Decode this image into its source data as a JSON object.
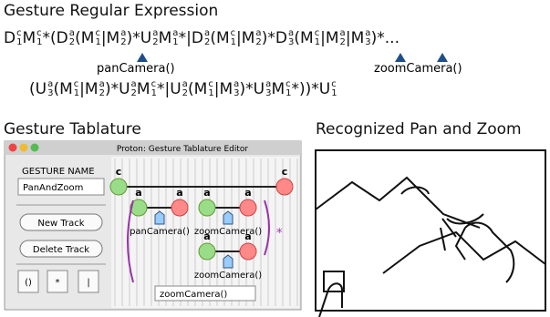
{
  "headings": {
    "expression": "Gesture Regular Expression",
    "tablature": "Gesture Tablature",
    "recognized": "Recognized Pan and Zoom"
  },
  "expression": {
    "lines": [
      [
        {
          "b": "D",
          "sub": "1",
          "sup": "c"
        },
        {
          "b": "M",
          "sub": "1",
          "sup": "c"
        },
        "*(",
        {
          "b": "D",
          "sub": "2",
          "sup": "a"
        },
        "(",
        {
          "b": "M",
          "sub": "1",
          "sup": "c"
        },
        "|",
        {
          "b": "M",
          "sub": "2",
          "sup": "a"
        },
        ")*",
        {
          "b": "U",
          "sub": "2",
          "sup": "a"
        },
        {
          "b": "M",
          "sub": "1",
          "sup": "a"
        },
        "*|",
        {
          "b": "D",
          "sub": "2",
          "sup": "a"
        },
        "(",
        {
          "b": "M",
          "sub": "1",
          "sup": "c"
        },
        "|",
        {
          "b": "M",
          "sub": "2",
          "sup": "a"
        },
        ")*",
        {
          "b": "D",
          "sub": "3",
          "sup": "a"
        },
        "(",
        {
          "b": "M",
          "sub": "1",
          "sup": "c"
        },
        "|",
        {
          "b": "M",
          "sub": "2",
          "sup": "a"
        },
        "|",
        {
          "b": "M",
          "sub": "3",
          "sup": "a"
        },
        ")*",
        "..."
      ],
      [
        "(",
        {
          "b": "U",
          "sub": "3",
          "sup": "a"
        },
        "(",
        {
          "b": "M",
          "sub": "1",
          "sup": "c"
        },
        "|",
        {
          "b": "M",
          "sub": "2",
          "sup": "a"
        },
        ")*",
        {
          "b": "U",
          "sub": "2",
          "sup": "a"
        },
        {
          "b": "M",
          "sub": "1",
          "sup": "c"
        },
        "*|",
        {
          "b": "U",
          "sub": "2",
          "sup": "a"
        },
        "(",
        {
          "b": "M",
          "sub": "1",
          "sup": "c"
        },
        "|",
        {
          "b": "M",
          "sub": "3",
          "sup": "a"
        },
        ")*",
        {
          "b": "U",
          "sub": "3",
          "sup": "a"
        },
        {
          "b": "M",
          "sub": "1",
          "sup": "c"
        },
        "*))*",
        {
          "b": "U",
          "sub": "1",
          "sup": "c"
        }
      ]
    ],
    "annotations": [
      "panCamera()",
      "zoomCamera()"
    ]
  },
  "tablature": {
    "window_title": "Proton: Gesture Tablature Editor",
    "name_label": "GESTURE NAME",
    "name_value": "PanAndZoom",
    "buttons": [
      "New Track",
      "Delete Track"
    ],
    "operators": [
      "()",
      "*",
      "|"
    ],
    "node_labels": [
      "c",
      "c",
      "a",
      "a",
      "a",
      "a",
      "a",
      "a"
    ],
    "actions": [
      "panCamera()",
      "zoomCamera()",
      "zoomCamera()"
    ],
    "repeat": "*",
    "action_field": "zoomCamera()"
  }
}
